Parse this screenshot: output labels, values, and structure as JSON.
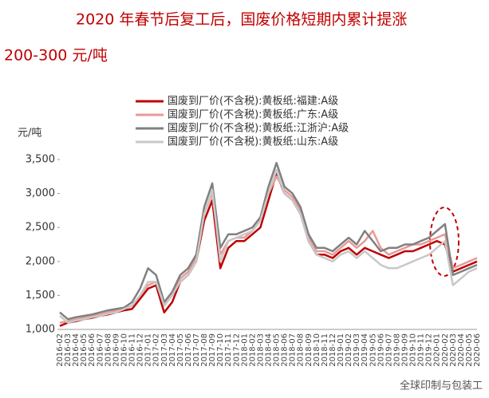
{
  "chart_data": {
    "type": "line",
    "title": "2020 年春节后复工后，国废价格短期内累计提涨",
    "subtitle": "200-300 元/吨",
    "y_label": "元/吨",
    "watermark": "全球印制与包装工",
    "categories": [
      "2016-02",
      "2016-03",
      "2016-04",
      "2016-05",
      "2016-06",
      "2016-07",
      "2016-08",
      "2016-09",
      "2016-10",
      "2016-11",
      "2016-12",
      "2017-01",
      "2017-02",
      "2017-03",
      "2017-04",
      "2017-05",
      "2017-06",
      "2017-07",
      "2017-08",
      "2017-09",
      "2017-10",
      "2017-11",
      "2017-12",
      "2018-01",
      "2018-02",
      "2018-03",
      "2018-04",
      "2018-05",
      "2018-06",
      "2018-07",
      "2018-08",
      "2018-09",
      "2018-10",
      "2018-11",
      "2018-12",
      "2019-01",
      "2019-02",
      "2019-03",
      "2019-04",
      "2019-05",
      "2019-06",
      "2019-07",
      "2019-08",
      "2019-09",
      "2019-10",
      "2019-11",
      "2019-12",
      "2020-01",
      "2020-02",
      "2020-03",
      "2020-04",
      "2020-05",
      "2020-06"
    ],
    "series": [
      {
        "name": "国废到厂价(不含税):黄板纸:福建:A级",
        "color": "#c00000",
        "values": [
          1050,
          1100,
          1120,
          1150,
          1170,
          1200,
          1220,
          1250,
          1280,
          1300,
          1450,
          1600,
          1650,
          1250,
          1400,
          1700,
          1800,
          2000,
          2600,
          2900,
          1900,
          2200,
          2300,
          2300,
          2400,
          2500,
          2900,
          3300,
          3000,
          2900,
          2700,
          2300,
          2100,
          2100,
          2050,
          2150,
          2200,
          2100,
          2200,
          2150,
          2100,
          2050,
          2100,
          2150,
          2150,
          2200,
          2250,
          2300,
          2250,
          1850,
          1900,
          1950,
          2000
        ]
      },
      {
        "name": "国废到厂价(不含税):黄板纸:广东:A级",
        "color": "#e89a9a",
        "values": [
          1100,
          1120,
          1150,
          1170,
          1200,
          1220,
          1250,
          1280,
          1300,
          1350,
          1500,
          1650,
          1700,
          1350,
          1500,
          1750,
          1850,
          2050,
          2700,
          3000,
          2100,
          2300,
          2350,
          2350,
          2450,
          2600,
          3000,
          3250,
          3050,
          2950,
          2750,
          2350,
          2150,
          2150,
          2100,
          2200,
          2300,
          2200,
          2300,
          2450,
          2200,
          2100,
          2150,
          2200,
          2250,
          2250,
          2300,
          2350,
          2400,
          1900,
          1950,
          2000,
          2050
        ]
      },
      {
        "name": "国废到厂价(不含税):黄板纸:江浙沪:A级",
        "color": "#808080",
        "values": [
          1250,
          1150,
          1180,
          1200,
          1220,
          1250,
          1280,
          1300,
          1320,
          1400,
          1600,
          1900,
          1800,
          1400,
          1550,
          1800,
          1900,
          2100,
          2800,
          3150,
          2200,
          2400,
          2400,
          2450,
          2500,
          2650,
          3100,
          3450,
          3100,
          3000,
          2800,
          2400,
          2200,
          2200,
          2150,
          2250,
          2350,
          2250,
          2450,
          2300,
          2150,
          2200,
          2200,
          2250,
          2250,
          2300,
          2350,
          2450,
          2550,
          1800,
          1850,
          1900,
          1950
        ]
      },
      {
        "name": "国废到厂价(不含税):黄板纸:山东:A级",
        "color": "#c8c8c8",
        "values": [
          1200,
          1100,
          1130,
          1150,
          1180,
          1200,
          1230,
          1250,
          1300,
          1350,
          1500,
          1700,
          1700,
          1350,
          1500,
          1700,
          1800,
          2000,
          2700,
          3050,
          2000,
          2300,
          2350,
          2400,
          2450,
          2600,
          3000,
          3350,
          3000,
          2900,
          2700,
          2300,
          2100,
          2050,
          2000,
          2100,
          2150,
          2050,
          2150,
          2050,
          1950,
          1900,
          1900,
          1950,
          2000,
          2050,
          2100,
          2200,
          2300,
          1650,
          1750,
          1850,
          1900
        ]
      }
    ],
    "ylim": [
      1000,
      3500
    ],
    "yticks": [
      {
        "value": 1000,
        "label": "1,000"
      },
      {
        "value": 1500,
        "label": "1,500"
      },
      {
        "value": 2000,
        "label": "2,000"
      },
      {
        "value": 2500,
        "label": "2,500"
      },
      {
        "value": 3000,
        "label": "3,000"
      },
      {
        "value": 3500,
        "label": "3,500"
      }
    ]
  }
}
